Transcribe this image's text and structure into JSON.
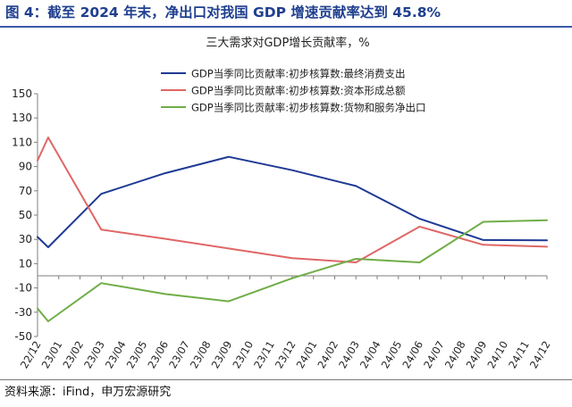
{
  "figure": {
    "title": "图 4：截至 2024 年末，净出口对我国 GDP 增速贡献率达到 45.8%",
    "source": "资料来源：iFind，申万宏源研究"
  },
  "chart_data": {
    "type": "line",
    "title": "三大需求对GDP增长贡献率，%",
    "xlabel": "",
    "ylabel": "",
    "ylim": [
      -50,
      150
    ],
    "yticks": [
      -50,
      -30,
      -10,
      10,
      30,
      50,
      70,
      90,
      110,
      130,
      150
    ],
    "categories": [
      "22/12",
      "23/01",
      "23/02",
      "23/03",
      "23/04",
      "23/05",
      "23/06",
      "23/07",
      "23/08",
      "23/09",
      "23/10",
      "23/11",
      "23/12",
      "24/01",
      "24/02",
      "24/03",
      "24/04",
      "24/05",
      "24/06",
      "24/07",
      "24/08",
      "24/09",
      "24/10",
      "24/11",
      "24/12"
    ],
    "legend_position": "top-right",
    "grid": false,
    "series": [
      {
        "name": "GDP当季同比贡献率:初步核算数:最终消费支出",
        "color": "#1f3a93",
        "points": [
          [
            0,
            32
          ],
          [
            0.5,
            23.5
          ],
          [
            3,
            67.5
          ],
          [
            6,
            84.5
          ],
          [
            9,
            98
          ],
          [
            12,
            87
          ],
          [
            15,
            74
          ],
          [
            18,
            47
          ],
          [
            21,
            29.5
          ],
          [
            24,
            29.3
          ]
        ]
      },
      {
        "name": "GDP当季同比贡献率:初步核算数:资本形成总额",
        "color": "#e06666",
        "points": [
          [
            0,
            95
          ],
          [
            0.5,
            114
          ],
          [
            3,
            38
          ],
          [
            6,
            30.5
          ],
          [
            9,
            22.5
          ],
          [
            12,
            14.5
          ],
          [
            15,
            11
          ],
          [
            18,
            40.5
          ],
          [
            21,
            25.5
          ],
          [
            24,
            24
          ]
        ]
      },
      {
        "name": "GDP当季同比贡献率:初步核算数:货物和服务净出口",
        "color": "#70ad47",
        "points": [
          [
            0,
            -27
          ],
          [
            0.5,
            -37.5
          ],
          [
            3,
            -6
          ],
          [
            6,
            -15
          ],
          [
            9,
            -21
          ],
          [
            12,
            -2
          ],
          [
            15,
            14
          ],
          [
            18,
            11
          ],
          [
            21,
            44.5
          ],
          [
            24,
            45.8
          ]
        ]
      }
    ]
  }
}
